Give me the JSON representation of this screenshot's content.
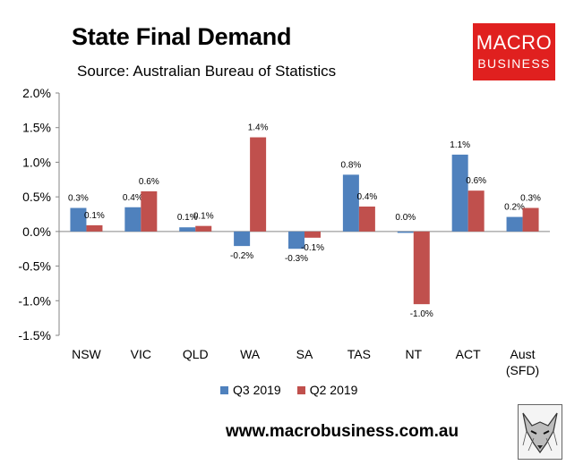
{
  "header": {
    "title": "State Final Demand",
    "subtitle": "Source: Australian Bureau of Statistics"
  },
  "logo": {
    "line1": "MACRO",
    "line2": "BUSINESS"
  },
  "footer": {
    "url": "www.macrobusiness.com.au"
  },
  "colors": {
    "q3": "#4f81bd",
    "q2": "#c0504d",
    "axis": "#868686"
  },
  "chart_data": {
    "type": "bar",
    "title": "State Final Demand",
    "subtitle": "Source: Australian Bureau of Statistics",
    "categories": [
      "NSW",
      "VIC",
      "QLD",
      "WA",
      "SA",
      "TAS",
      "NT",
      "ACT",
      "Aust\n(SFD)"
    ],
    "series": [
      {
        "name": "Q3 2019",
        "values": [
          0.34,
          0.35,
          0.06,
          -0.21,
          -0.25,
          0.82,
          -0.02,
          1.11,
          0.21
        ],
        "labels": [
          "0.3%",
          "0.4%",
          "0.1%",
          "-0.2%",
          "-0.3%",
          "0.8%",
          "0.0%",
          "1.1%",
          "0.2%"
        ]
      },
      {
        "name": "Q2 2019",
        "values": [
          0.09,
          0.58,
          0.08,
          1.36,
          -0.09,
          0.36,
          -1.05,
          0.59,
          0.34
        ],
        "labels": [
          "0.1%",
          "0.6%",
          "0.1%",
          "1.4%",
          "-0.1%",
          "0.4%",
          "-1.0%",
          "0.6%",
          "0.3%"
        ]
      }
    ],
    "yticks": [
      "2.0%",
      "1.5%",
      "1.0%",
      "0.5%",
      "0.0%",
      "-0.5%",
      "-1.0%",
      "-1.5%"
    ],
    "ylim": [
      -1.5,
      2.0
    ],
    "grid": false,
    "legend": "bottom"
  }
}
